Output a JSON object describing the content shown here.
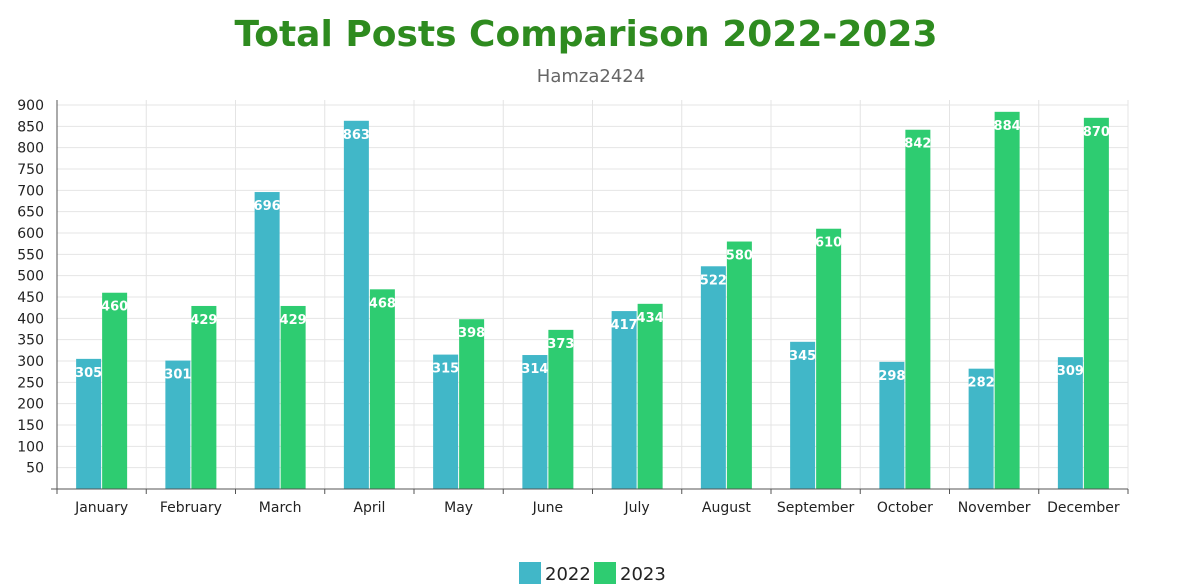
{
  "chart_data": {
    "type": "bar",
    "title": "Total Posts Comparison 2022-2023",
    "subtitle": "Hamza2424",
    "xlabel": "",
    "ylabel": "",
    "categories": [
      "January",
      "February",
      "March",
      "April",
      "May",
      "June",
      "July",
      "August",
      "September",
      "October",
      "November",
      "December"
    ],
    "series": [
      {
        "name": "2022",
        "color": "#41b7c8",
        "values": [
          305,
          301,
          696,
          863,
          315,
          314,
          417,
          522,
          345,
          298,
          282,
          309
        ]
      },
      {
        "name": "2023",
        "color": "#2ecc71",
        "values": [
          460,
          429,
          429,
          468,
          398,
          373,
          434,
          580,
          610,
          842,
          884,
          870
        ]
      }
    ],
    "ylim": [
      0,
      900
    ],
    "yticks": [
      50,
      100,
      150,
      200,
      250,
      300,
      350,
      400,
      450,
      500,
      550,
      600,
      650,
      700,
      750,
      800,
      850,
      900
    ],
    "grid": true,
    "legend_position": "bottom-center",
    "title_color": "#2e8b1f"
  }
}
